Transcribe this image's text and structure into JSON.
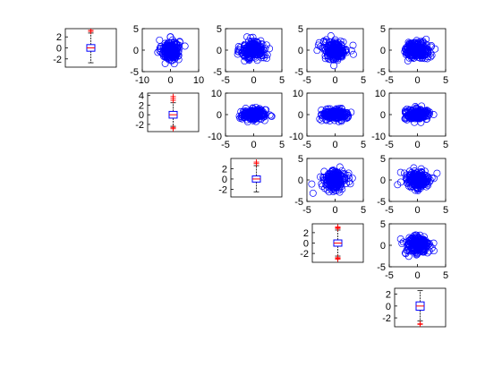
{
  "colors": {
    "background": "#ffffff",
    "axes": "#000000",
    "scatter": "#0000ff",
    "box": "#0000ff",
    "median": "#ff0000",
    "outlier": "#ff0000"
  },
  "chart_data": {
    "type": "scatter",
    "layout": "5x5 upper-triangular scatter-plot matrix with box plots on the diagonal",
    "grid": false,
    "legend": "none",
    "marker": "open circle",
    "panels": [
      {
        "id": "box-1",
        "kind": "box",
        "row": 1,
        "col": 1,
        "ylim": [
          -3.5,
          3.5
        ],
        "yticks": [
          "2",
          "0",
          "-2"
        ],
        "yvals": [
          2,
          0,
          -2
        ],
        "q1": -0.6,
        "median": 0.0,
        "q3": 0.6,
        "whisker_low": -2.7,
        "whisker_high": 2.7,
        "outliers": [
          3.0,
          3.2
        ]
      },
      {
        "id": "scatter-1-2",
        "kind": "scatter",
        "row": 1,
        "col": 2,
        "xlim": [
          -10,
          10
        ],
        "ylim": [
          -5,
          5
        ],
        "xticks": [
          "-10",
          "0",
          "10"
        ],
        "xvals": [
          -10,
          0,
          10
        ],
        "yticks": [
          "5",
          "0",
          "-5"
        ],
        "yvals": [
          5,
          0,
          -5
        ],
        "sx": 1.6,
        "sy": 1.2
      },
      {
        "id": "scatter-1-3",
        "kind": "scatter",
        "row": 1,
        "col": 3,
        "xlim": [
          -5,
          5
        ],
        "ylim": [
          -5,
          5
        ],
        "xticks": [
          "-5",
          "0",
          "5"
        ],
        "xvals": [
          -5,
          0,
          5
        ],
        "yticks": [
          "5",
          "0",
          "-5"
        ],
        "yvals": [
          5,
          0,
          -5
        ],
        "sx": 1.1,
        "sy": 1.1
      },
      {
        "id": "scatter-1-4",
        "kind": "scatter",
        "row": 1,
        "col": 4,
        "xlim": [
          -5,
          5
        ],
        "ylim": [
          -5,
          5
        ],
        "xticks": [
          "-5",
          "0",
          "5"
        ],
        "xvals": [
          -5,
          0,
          5
        ],
        "yticks": [
          "5",
          "0",
          "-5"
        ],
        "yvals": [
          5,
          0,
          -5
        ],
        "sx": 1.1,
        "sy": 1.1
      },
      {
        "id": "scatter-1-5",
        "kind": "scatter",
        "row": 1,
        "col": 5,
        "xlim": [
          -5,
          5
        ],
        "ylim": [
          -5,
          5
        ],
        "xticks": [
          "-5",
          "0",
          "5"
        ],
        "xvals": [
          -5,
          0,
          5
        ],
        "yticks": [
          "5",
          "0",
          "-5"
        ],
        "yvals": [
          5,
          0,
          -5
        ],
        "sx": 1.1,
        "sy": 1.0
      },
      {
        "id": "box-2",
        "kind": "box",
        "row": 2,
        "col": 2,
        "ylim": [
          -3.5,
          4.5
        ],
        "yticks": [
          "4",
          "2",
          "0",
          "-2"
        ],
        "yvals": [
          4,
          2,
          0,
          -2
        ],
        "q1": -0.7,
        "median": 0.0,
        "q3": 0.7,
        "whisker_low": -2.4,
        "whisker_high": 2.5,
        "outliers": [
          3.0,
          3.4,
          3.8,
          -2.7,
          -2.9
        ]
      },
      {
        "id": "scatter-2-3",
        "kind": "scatter",
        "row": 2,
        "col": 3,
        "xlim": [
          -5,
          5
        ],
        "ylim": [
          -10,
          10
        ],
        "xticks": [
          "-5",
          "0",
          "5"
        ],
        "xvals": [
          -5,
          0,
          5
        ],
        "yticks": [
          "10",
          "0",
          "-10"
        ],
        "yvals": [
          10,
          0,
          -10
        ],
        "sx": 1.1,
        "sy": 1.2
      },
      {
        "id": "scatter-2-4",
        "kind": "scatter",
        "row": 2,
        "col": 4,
        "xlim": [
          -5,
          5
        ],
        "ylim": [
          -10,
          10
        ],
        "xticks": [
          "-5",
          "0",
          "5"
        ],
        "xvals": [
          -5,
          0,
          5
        ],
        "yticks": [
          "10",
          "0",
          "-10"
        ],
        "yvals": [
          10,
          0,
          -10
        ],
        "sx": 1.1,
        "sy": 1.2
      },
      {
        "id": "scatter-2-5",
        "kind": "scatter",
        "row": 2,
        "col": 5,
        "xlim": [
          -5,
          5
        ],
        "ylim": [
          -10,
          10
        ],
        "xticks": [
          "-5",
          "0",
          "5"
        ],
        "xvals": [
          -5,
          0,
          5
        ],
        "yticks": [
          "10",
          "0",
          "-10"
        ],
        "yvals": [
          10,
          0,
          -10
        ],
        "sx": 1.1,
        "sy": 1.2
      },
      {
        "id": "box-3",
        "kind": "box",
        "row": 3,
        "col": 3,
        "ylim": [
          -3.5,
          4
        ],
        "yticks": [
          "2",
          "0",
          "-2"
        ],
        "yvals": [
          2,
          0,
          -2
        ],
        "q1": -0.6,
        "median": 0.0,
        "q3": 0.6,
        "whisker_low": -2.5,
        "whisker_high": 2.6,
        "outliers": [
          3.0,
          3.3
        ]
      },
      {
        "id": "scatter-3-4",
        "kind": "scatter",
        "row": 3,
        "col": 4,
        "xlim": [
          -5,
          5
        ],
        "ylim": [
          -5,
          5
        ],
        "xticks": [
          "-5",
          "0",
          "5"
        ],
        "xvals": [
          -5,
          0,
          5
        ],
        "yticks": [
          "5",
          "0",
          "-5"
        ],
        "yvals": [
          5,
          0,
          -5
        ],
        "sx": 1.0,
        "sy": 1.1
      },
      {
        "id": "scatter-3-5",
        "kind": "scatter",
        "row": 3,
        "col": 5,
        "xlim": [
          -5,
          5
        ],
        "ylim": [
          -5,
          5
        ],
        "xticks": [
          "-5",
          "0",
          "5"
        ],
        "xvals": [
          -5,
          0,
          5
        ],
        "yticks": [
          "5",
          "0",
          "-5"
        ],
        "yvals": [
          5,
          0,
          -5
        ],
        "sx": 1.1,
        "sy": 1.1
      },
      {
        "id": "box-4",
        "kind": "box",
        "row": 4,
        "col": 4,
        "ylim": [
          -3.7,
          3.7
        ],
        "yticks": [
          "2",
          "0",
          "-2"
        ],
        "yvals": [
          2,
          0,
          -2
        ],
        "q1": -0.6,
        "median": 0.0,
        "q3": 0.6,
        "whisker_low": -2.5,
        "whisker_high": 2.5,
        "outliers": [
          2.8,
          2.95,
          3.1,
          -2.8,
          -2.95,
          -3.1
        ]
      },
      {
        "id": "scatter-4-5",
        "kind": "scatter",
        "row": 4,
        "col": 5,
        "xlim": [
          -5,
          5
        ],
        "ylim": [
          -5,
          5
        ],
        "xticks": [
          "-5",
          "0",
          "5"
        ],
        "xvals": [
          -5,
          0,
          5
        ],
        "yticks": [
          "5",
          "0",
          "-5"
        ],
        "yvals": [
          5,
          0,
          -5
        ],
        "sx": 1.1,
        "sy": 1.1
      },
      {
        "id": "box-5",
        "kind": "box",
        "row": 5,
        "col": 5,
        "ylim": [
          -3.5,
          3.0
        ],
        "yticks": [
          "2",
          "0",
          "-2"
        ],
        "yvals": [
          2,
          0,
          -2
        ],
        "q1": -0.7,
        "median": 0.0,
        "q3": 0.7,
        "whisker_low": -2.5,
        "whisker_high": 2.6,
        "outliers": [
          -3.0,
          -3.1
        ]
      }
    ]
  }
}
